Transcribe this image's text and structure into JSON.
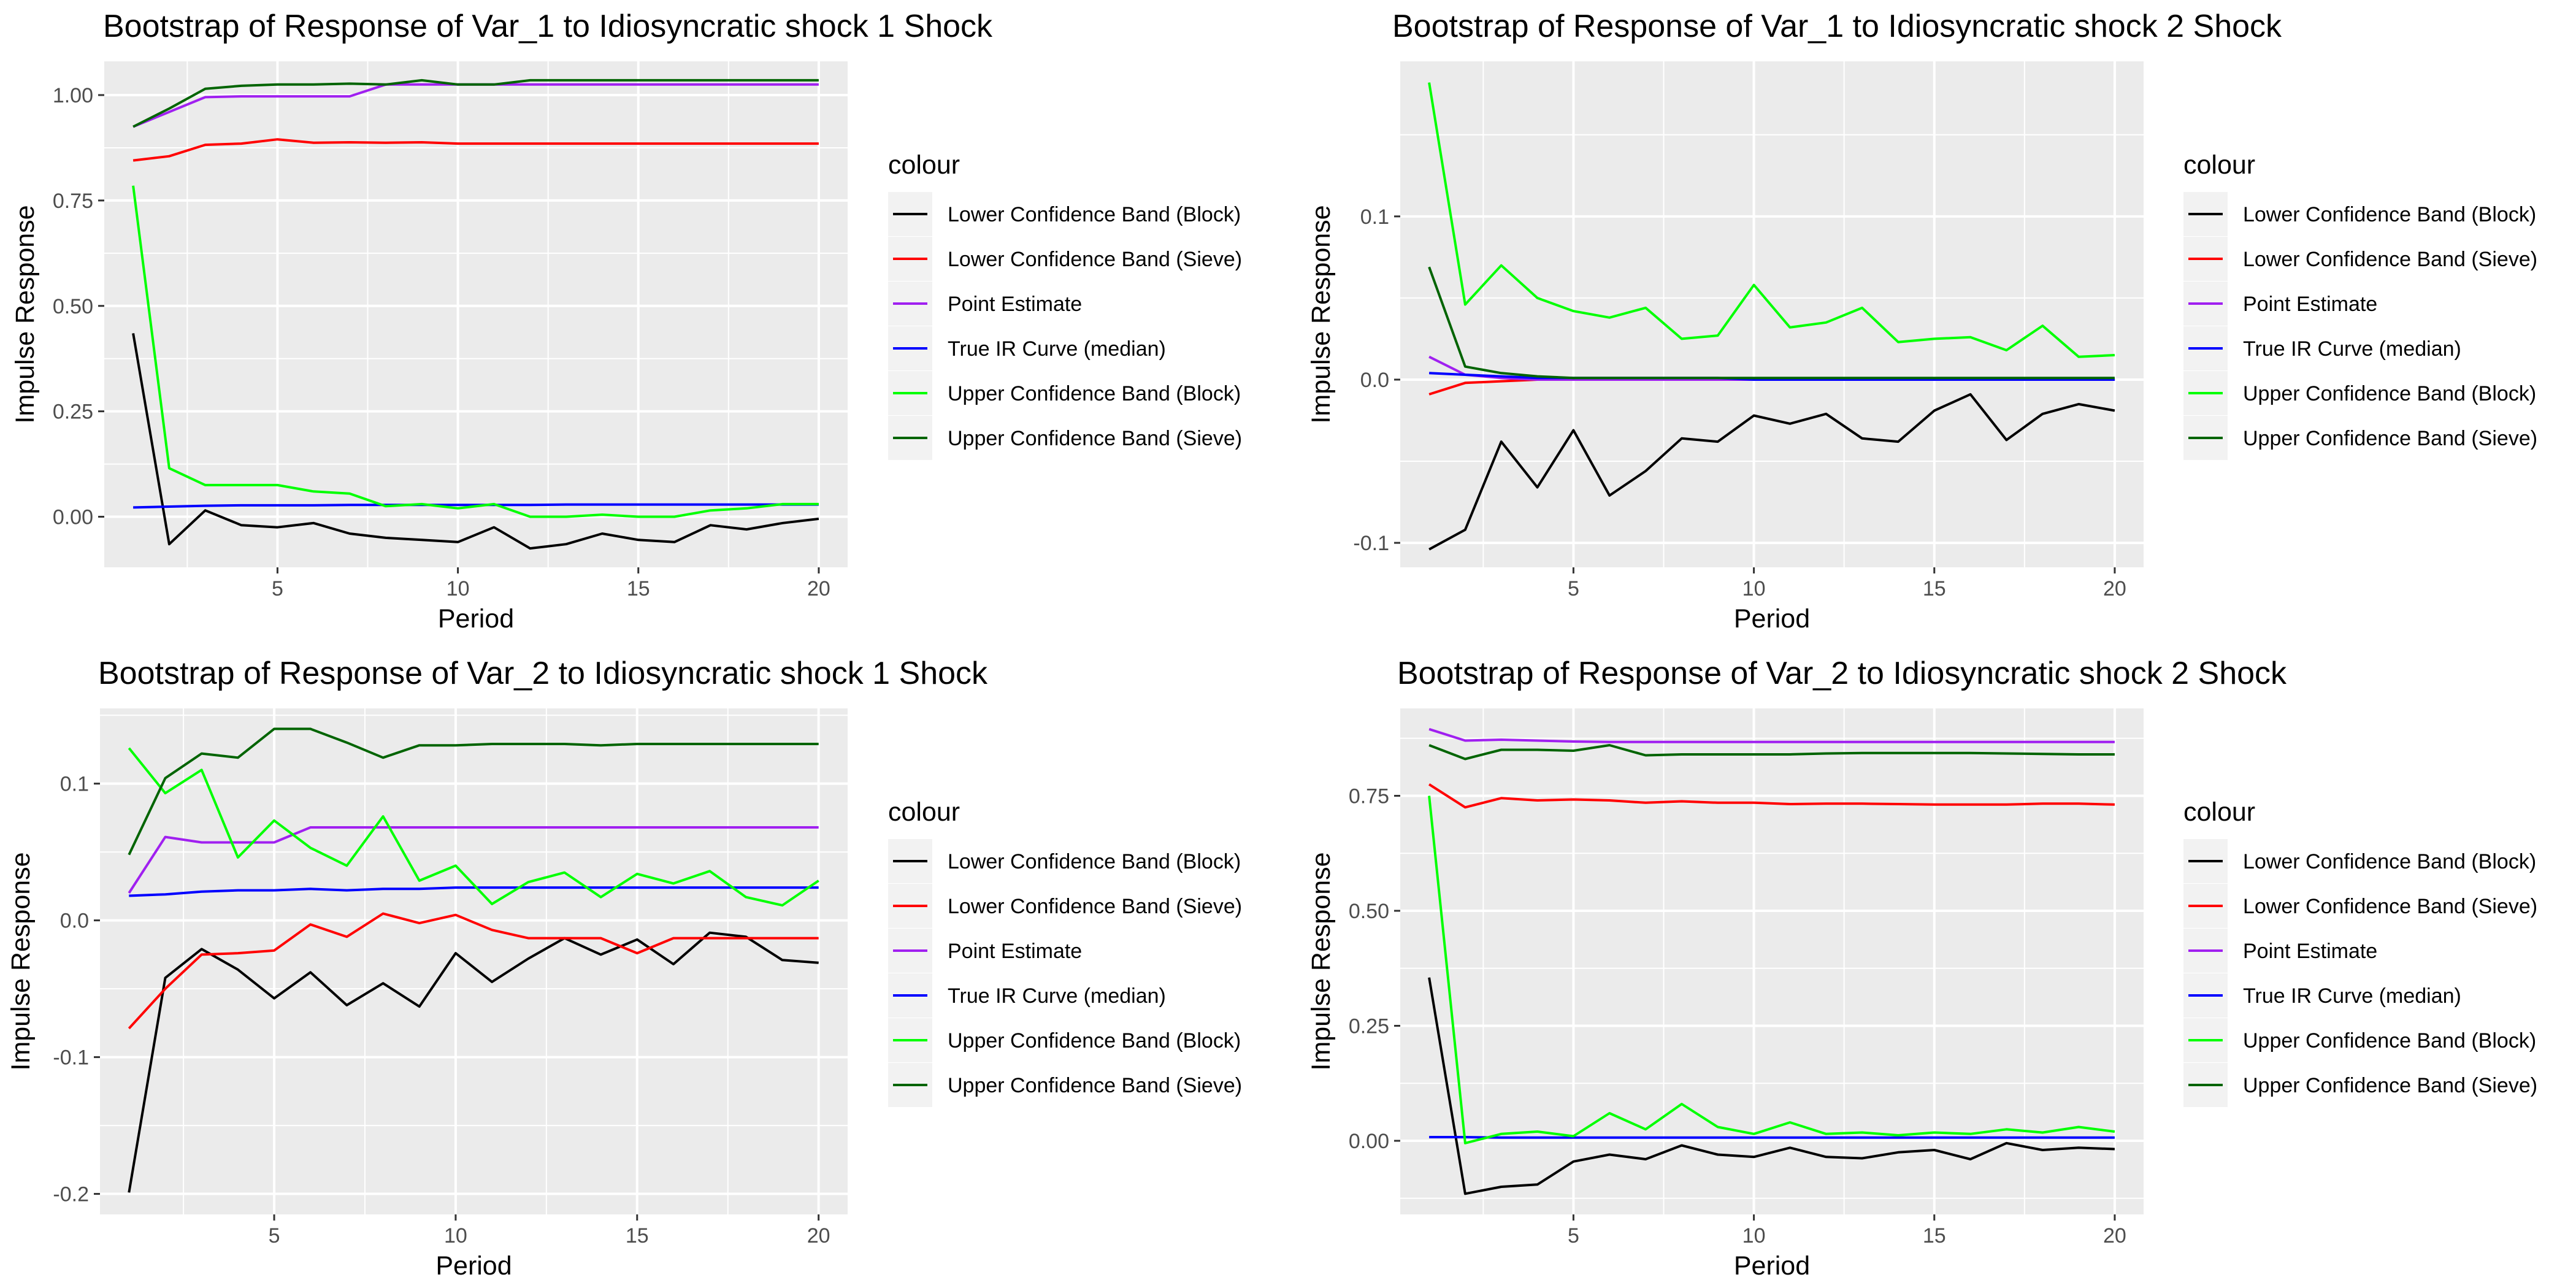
{
  "chart_data": [
    {
      "type": "line",
      "title": "Bootstrap of Response of Var_1 to Idiosyncratic shock 1 Shock",
      "xlabel": "Period",
      "ylabel": "Impulse Response",
      "xlim": [
        0.2,
        20.8
      ],
      "ylim": [
        -0.12,
        1.08
      ],
      "xticks": [
        5,
        10,
        15,
        20
      ],
      "yticks": [
        0.0,
        0.25,
        0.5,
        0.75,
        1.0
      ],
      "ytick_labels": [
        "0.00",
        "0.25",
        "0.50",
        "0.75",
        "1.00"
      ],
      "legend": {
        "title": "colour",
        "position": "right"
      },
      "x": [
        1,
        2,
        3,
        4,
        5,
        6,
        7,
        8,
        9,
        10,
        11,
        12,
        13,
        14,
        15,
        16,
        17,
        18,
        19,
        20
      ],
      "series": [
        {
          "name": "Lower Confidence Band (Block)",
          "color": "#000000",
          "values": [
            0.435,
            -0.065,
            0.015,
            -0.02,
            -0.025,
            -0.015,
            -0.04,
            -0.05,
            -0.055,
            -0.06,
            -0.025,
            -0.075,
            -0.065,
            -0.04,
            -0.055,
            -0.06,
            -0.02,
            -0.03,
            -0.015,
            -0.005
          ]
        },
        {
          "name": "Lower Confidence Band (Sieve)",
          "color": "#ff0000",
          "values": [
            0.845,
            0.855,
            0.882,
            0.885,
            0.895,
            0.887,
            0.888,
            0.887,
            0.888,
            0.885,
            0.885,
            0.885,
            0.885,
            0.885,
            0.885,
            0.885,
            0.885,
            0.885,
            0.885,
            0.885
          ]
        },
        {
          "name": "Point Estimate",
          "color": "#a020f0",
          "values": [
            0.925,
            0.96,
            0.995,
            0.997,
            0.997,
            0.997,
            0.997,
            1.025,
            1.025,
            1.025,
            1.025,
            1.025,
            1.025,
            1.025,
            1.025,
            1.025,
            1.025,
            1.025,
            1.025,
            1.025
          ]
        },
        {
          "name": "True IR Curve (median)",
          "color": "#0000ff",
          "values": [
            0.022,
            0.024,
            0.026,
            0.027,
            0.027,
            0.027,
            0.028,
            0.028,
            0.028,
            0.028,
            0.028,
            0.028,
            0.029,
            0.029,
            0.029,
            0.029,
            0.029,
            0.029,
            0.029,
            0.029
          ]
        },
        {
          "name": "Upper Confidence Band (Block)",
          "color": "#00ff00",
          "values": [
            0.785,
            0.115,
            0.075,
            0.075,
            0.075,
            0.06,
            0.055,
            0.025,
            0.03,
            0.02,
            0.03,
            0.0,
            0.0,
            0.005,
            0.0,
            0.0,
            0.015,
            0.02,
            0.03,
            0.03
          ]
        },
        {
          "name": "Upper Confidence Band (Sieve)",
          "color": "#006400",
          "values": [
            0.925,
            0.968,
            1.015,
            1.022,
            1.025,
            1.025,
            1.027,
            1.025,
            1.035,
            1.025,
            1.025,
            1.035,
            1.035,
            1.035,
            1.035,
            1.035,
            1.035,
            1.035,
            1.035,
            1.035
          ]
        }
      ]
    },
    {
      "type": "line",
      "title": "Bootstrap of Response of Var_1 to Idiosyncratic shock 2 Shock",
      "xlabel": "Period",
      "ylabel": "Impulse Response",
      "xlim": [
        0.2,
        20.8
      ],
      "ylim": [
        -0.115,
        0.195
      ],
      "xticks": [
        5,
        10,
        15,
        20
      ],
      "yticks": [
        -0.1,
        0.0,
        0.1
      ],
      "ytick_labels": [
        "-0.1",
        "0.0",
        "0.1"
      ],
      "legend": {
        "title": "colour",
        "position": "right"
      },
      "x": [
        1,
        2,
        3,
        4,
        5,
        6,
        7,
        8,
        9,
        10,
        11,
        12,
        13,
        14,
        15,
        16,
        17,
        18,
        19,
        20
      ],
      "series": [
        {
          "name": "Lower Confidence Band (Block)",
          "color": "#000000",
          "values": [
            -0.104,
            -0.092,
            -0.038,
            -0.066,
            -0.031,
            -0.071,
            -0.056,
            -0.036,
            -0.038,
            -0.022,
            -0.027,
            -0.021,
            -0.036,
            -0.038,
            -0.019,
            -0.009,
            -0.037,
            -0.021,
            -0.015,
            -0.019
          ]
        },
        {
          "name": "Lower Confidence Band (Sieve)",
          "color": "#ff0000",
          "values": [
            -0.009,
            -0.002,
            -0.001,
            0.0,
            0.0,
            0.0,
            0.0,
            0.0,
            0.0,
            0.0,
            0.0,
            0.0,
            0.0,
            0.0,
            0.0,
            0.0,
            0.0,
            0.0,
            0.0,
            0.0
          ]
        },
        {
          "name": "Point Estimate",
          "color": "#a020f0",
          "values": [
            0.014,
            0.003,
            0.001,
            0.0,
            0.0,
            0.0,
            0.0,
            0.0,
            0.0,
            0.0,
            0.0,
            0.0,
            0.0,
            0.0,
            0.0,
            0.0,
            0.0,
            0.0,
            0.0,
            0.0
          ]
        },
        {
          "name": "True IR Curve (median)",
          "color": "#0000ff",
          "values": [
            0.004,
            0.003,
            0.002,
            0.001,
            0.001,
            0.001,
            0.001,
            0.001,
            0.001,
            0.0,
            0.0,
            0.0,
            0.0,
            0.0,
            0.0,
            0.0,
            0.0,
            0.0,
            0.0,
            0.0
          ]
        },
        {
          "name": "Upper Confidence Band (Block)",
          "color": "#00ff00",
          "values": [
            0.182,
            0.046,
            0.07,
            0.05,
            0.042,
            0.038,
            0.044,
            0.025,
            0.027,
            0.058,
            0.032,
            0.035,
            0.044,
            0.023,
            0.025,
            0.026,
            0.018,
            0.033,
            0.014,
            0.015
          ]
        },
        {
          "name": "Upper Confidence Band (Sieve)",
          "color": "#006400",
          "values": [
            0.069,
            0.008,
            0.004,
            0.002,
            0.001,
            0.001,
            0.001,
            0.001,
            0.001,
            0.001,
            0.001,
            0.001,
            0.001,
            0.001,
            0.001,
            0.001,
            0.001,
            0.001,
            0.001,
            0.001
          ]
        }
      ]
    },
    {
      "type": "line",
      "title": "Bootstrap of Response of Var_2 to Idiosyncratic shock 1 Shock",
      "xlabel": "Period",
      "ylabel": "Impulse Response",
      "xlim": [
        0.2,
        20.8
      ],
      "ylim": [
        -0.215,
        0.155
      ],
      "xticks": [
        5,
        10,
        15,
        20
      ],
      "yticks": [
        -0.2,
        -0.1,
        0.0,
        0.1
      ],
      "ytick_labels": [
        "-0.2",
        "-0.1",
        "0.0",
        "0.1"
      ],
      "legend": {
        "title": "colour",
        "position": "right"
      },
      "x": [
        1,
        2,
        3,
        4,
        5,
        6,
        7,
        8,
        9,
        10,
        11,
        12,
        13,
        14,
        15,
        16,
        17,
        18,
        19,
        20
      ],
      "series": [
        {
          "name": "Lower Confidence Band (Block)",
          "color": "#000000",
          "values": [
            -0.199,
            -0.042,
            -0.021,
            -0.036,
            -0.057,
            -0.038,
            -0.062,
            -0.046,
            -0.063,
            -0.024,
            -0.045,
            -0.028,
            -0.013,
            -0.025,
            -0.014,
            -0.032,
            -0.009,
            -0.012,
            -0.029,
            -0.031
          ]
        },
        {
          "name": "Lower Confidence Band (Sieve)",
          "color": "#ff0000",
          "values": [
            -0.079,
            -0.05,
            -0.025,
            -0.024,
            -0.022,
            -0.003,
            -0.012,
            0.005,
            -0.002,
            0.004,
            -0.007,
            -0.013,
            -0.013,
            -0.013,
            -0.024,
            -0.013,
            -0.013,
            -0.013,
            -0.013,
            -0.013
          ]
        },
        {
          "name": "Point Estimate",
          "color": "#a020f0",
          "values": [
            0.02,
            0.061,
            0.057,
            0.057,
            0.057,
            0.068,
            0.068,
            0.068,
            0.068,
            0.068,
            0.068,
            0.068,
            0.068,
            0.068,
            0.068,
            0.068,
            0.068,
            0.068,
            0.068,
            0.068
          ]
        },
        {
          "name": "True IR Curve (median)",
          "color": "#0000ff",
          "values": [
            0.018,
            0.019,
            0.021,
            0.022,
            0.022,
            0.023,
            0.022,
            0.023,
            0.023,
            0.024,
            0.024,
            0.024,
            0.024,
            0.024,
            0.024,
            0.024,
            0.024,
            0.024,
            0.024,
            0.024
          ]
        },
        {
          "name": "Upper Confidence Band (Block)",
          "color": "#00ff00",
          "values": [
            0.126,
            0.093,
            0.11,
            0.046,
            0.073,
            0.053,
            0.04,
            0.076,
            0.029,
            0.04,
            0.012,
            0.028,
            0.035,
            0.017,
            0.034,
            0.027,
            0.036,
            0.017,
            0.011,
            0.029
          ]
        },
        {
          "name": "Upper Confidence Band (Sieve)",
          "color": "#006400",
          "values": [
            0.048,
            0.104,
            0.122,
            0.119,
            0.14,
            0.14,
            0.13,
            0.119,
            0.128,
            0.128,
            0.129,
            0.129,
            0.129,
            0.128,
            0.129,
            0.129,
            0.129,
            0.129,
            0.129,
            0.129
          ]
        }
      ]
    },
    {
      "type": "line",
      "title": "Bootstrap of Response of Var_2 to Idiosyncratic shock 2 Shock",
      "xlabel": "Period",
      "ylabel": "Impulse Response",
      "xlim": [
        0.2,
        20.8
      ],
      "ylim": [
        -0.16,
        0.94
      ],
      "xticks": [
        5,
        10,
        15,
        20
      ],
      "yticks": [
        0.0,
        0.25,
        0.5,
        0.75
      ],
      "ytick_labels": [
        "0.00",
        "0.25",
        "0.50",
        "0.75"
      ],
      "legend": {
        "title": "colour",
        "position": "right"
      },
      "x": [
        1,
        2,
        3,
        4,
        5,
        6,
        7,
        8,
        9,
        10,
        11,
        12,
        13,
        14,
        15,
        16,
        17,
        18,
        19,
        20
      ],
      "series": [
        {
          "name": "Lower Confidence Band (Block)",
          "color": "#000000",
          "values": [
            0.355,
            -0.115,
            -0.1,
            -0.095,
            -0.045,
            -0.03,
            -0.04,
            -0.01,
            -0.03,
            -0.035,
            -0.015,
            -0.035,
            -0.038,
            -0.025,
            -0.02,
            -0.04,
            -0.005,
            -0.02,
            -0.015,
            -0.018
          ]
        },
        {
          "name": "Lower Confidence Band (Sieve)",
          "color": "#ff0000",
          "values": [
            0.775,
            0.725,
            0.745,
            0.74,
            0.742,
            0.74,
            0.735,
            0.738,
            0.735,
            0.735,
            0.732,
            0.733,
            0.733,
            0.732,
            0.731,
            0.731,
            0.731,
            0.733,
            0.733,
            0.731
          ]
        },
        {
          "name": "Point Estimate",
          "color": "#a020f0",
          "values": [
            0.895,
            0.87,
            0.872,
            0.87,
            0.868,
            0.867,
            0.867,
            0.867,
            0.867,
            0.867,
            0.867,
            0.867,
            0.867,
            0.867,
            0.867,
            0.867,
            0.867,
            0.867,
            0.867,
            0.867
          ]
        },
        {
          "name": "True IR Curve (median)",
          "color": "#0000ff",
          "values": [
            0.008,
            0.008,
            0.007,
            0.007,
            0.007,
            0.007,
            0.007,
            0.007,
            0.007,
            0.007,
            0.007,
            0.007,
            0.007,
            0.007,
            0.007,
            0.007,
            0.007,
            0.007,
            0.007,
            0.007
          ]
        },
        {
          "name": "Upper Confidence Band (Block)",
          "color": "#00ff00",
          "values": [
            0.75,
            -0.005,
            0.015,
            0.02,
            0.01,
            0.06,
            0.025,
            0.08,
            0.03,
            0.015,
            0.04,
            0.015,
            0.018,
            0.012,
            0.018,
            0.015,
            0.025,
            0.018,
            0.03,
            0.02
          ]
        },
        {
          "name": "Upper Confidence Band (Sieve)",
          "color": "#006400",
          "values": [
            0.86,
            0.83,
            0.85,
            0.85,
            0.848,
            0.86,
            0.838,
            0.84,
            0.84,
            0.84,
            0.84,
            0.842,
            0.843,
            0.843,
            0.843,
            0.843,
            0.842,
            0.841,
            0.84,
            0.84
          ]
        }
      ]
    }
  ]
}
